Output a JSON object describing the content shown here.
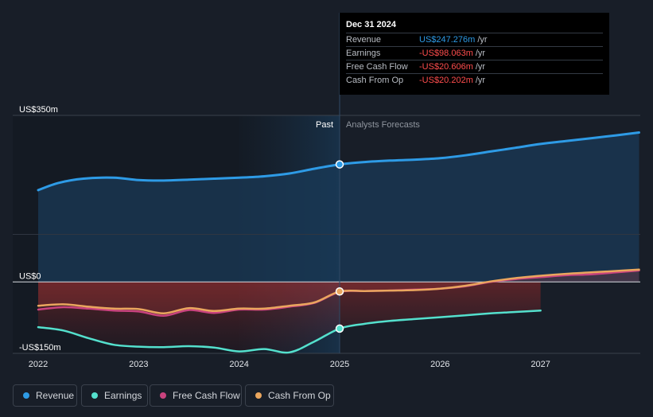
{
  "colors": {
    "revenue": "#2e9be6",
    "earnings": "#54e0cd",
    "free_cash_flow": "#c9437e",
    "cash_from_op": "#eaa65e"
  },
  "tooltip": {
    "date": "Dec 31 2024",
    "rows": [
      {
        "label": "Revenue",
        "value": "US$247.276m",
        "unit": "/yr",
        "color": "#2e9be6"
      },
      {
        "label": "Earnings",
        "value": "-US$98.063m",
        "unit": "/yr",
        "color": "#ff4d4d"
      },
      {
        "label": "Free Cash Flow",
        "value": "-US$20.606m",
        "unit": "/yr",
        "color": "#ff4d4d"
      },
      {
        "label": "Cash From Op",
        "value": "-US$20.202m",
        "unit": "/yr",
        "color": "#ff4d4d"
      }
    ]
  },
  "legend": [
    {
      "label": "Revenue",
      "color": "#2e9be6"
    },
    {
      "label": "Earnings",
      "color": "#54e0cd"
    },
    {
      "label": "Free Cash Flow",
      "color": "#c9437e"
    },
    {
      "label": "Cash From Op",
      "color": "#eaa65e"
    }
  ],
  "chart_data": {
    "type": "line",
    "title": "",
    "xlabel": "",
    "ylabel": "",
    "x_ticks": [
      2022,
      2023,
      2024,
      2025,
      2026,
      2027
    ],
    "y_ticks": [
      {
        "value": 350,
        "label": "US$350m"
      },
      {
        "value": 0,
        "label": "US$0"
      },
      {
        "value": -150,
        "label": "-US$150m"
      }
    ],
    "ylim": [
      -150,
      350
    ],
    "xlim": [
      2021.75,
      2027.98
    ],
    "past_label": "Past",
    "forecast_label": "Analysts Forecasts",
    "divider_x": 2025,
    "series": [
      {
        "name": "Revenue",
        "key": "revenue",
        "x": [
          2022,
          2022.2,
          2022.45,
          2022.75,
          2023,
          2023.25,
          2023.5,
          2023.75,
          2024,
          2024.25,
          2024.5,
          2024.75,
          2025,
          2025.25,
          2025.5,
          2025.75,
          2026,
          2026.25,
          2026.5,
          2026.75,
          2027,
          2027.25,
          2027.5,
          2027.75,
          2027.98
        ],
        "values": [
          193,
          208,
          217,
          219,
          214,
          213,
          215,
          217,
          219,
          222,
          228,
          238,
          247,
          252,
          255,
          257,
          260,
          266,
          274,
          282,
          290,
          296,
          302,
          308,
          314
        ]
      },
      {
        "name": "Earnings",
        "key": "earnings",
        "x": [
          2022,
          2022.25,
          2022.5,
          2022.75,
          2023,
          2023.25,
          2023.5,
          2023.75,
          2024,
          2024.25,
          2024.5,
          2024.75,
          2025,
          2025.25,
          2025.5,
          2025.75,
          2026,
          2026.25,
          2026.5,
          2026.75,
          2027
        ],
        "values": [
          -95,
          -102,
          -118,
          -132,
          -136,
          -137,
          -135,
          -138,
          -146,
          -141,
          -148,
          -125,
          -98,
          -88,
          -82,
          -78,
          -74,
          -70,
          -66,
          -63,
          -60
        ]
      },
      {
        "name": "Free Cash Flow",
        "key": "free_cash_flow",
        "x": [
          2022,
          2022.25,
          2022.5,
          2022.75,
          2023,
          2023.25,
          2023.5,
          2023.75,
          2024,
          2024.25,
          2024.5,
          2024.75,
          2025,
          2025.25,
          2025.5,
          2025.75,
          2026,
          2026.25,
          2026.5,
          2026.75,
          2027,
          2027.25,
          2027.5,
          2027.75,
          2027.98
        ],
        "values": [
          -58,
          -53,
          -56,
          -60,
          -62,
          -71,
          -59,
          -65,
          -58,
          -58,
          -52,
          -44,
          -21,
          -19,
          -18,
          -16,
          -14,
          -9,
          0,
          6,
          10,
          14,
          16,
          20,
          24
        ]
      },
      {
        "name": "Cash From Op",
        "key": "cash_from_op",
        "x": [
          2022,
          2022.25,
          2022.5,
          2022.75,
          2023,
          2023.25,
          2023.5,
          2023.75,
          2024,
          2024.25,
          2024.5,
          2024.75,
          2025,
          2025.25,
          2025.5,
          2025.75,
          2026,
          2026.25,
          2026.5,
          2026.75,
          2027,
          2027.25,
          2027.5,
          2027.75,
          2027.98
        ],
        "values": [
          -50,
          -47,
          -52,
          -56,
          -57,
          -66,
          -55,
          -61,
          -56,
          -56,
          -50,
          -43,
          -20,
          -19,
          -18,
          -17,
          -14,
          -8,
          1,
          8,
          13,
          17,
          20,
          23,
          26
        ]
      }
    ],
    "highlight": {
      "x": 2025,
      "series_keys": [
        "revenue",
        "earnings",
        "cash_from_op"
      ]
    }
  }
}
